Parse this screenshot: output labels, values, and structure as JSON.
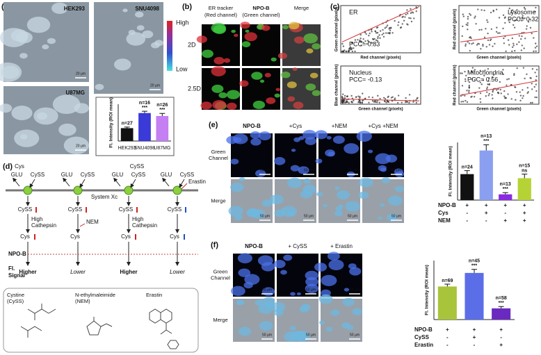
{
  "figure": {
    "a": {
      "label": "(a)",
      "images": [
        {
          "name": "HEK293",
          "scale": "20 μm"
        },
        {
          "name": "SNU4098",
          "scale": "20 μm"
        },
        {
          "name": "U87MG",
          "scale": "20 μm"
        }
      ],
      "colorbar": {
        "high": "High",
        "low": "Low"
      }
    },
    "b": {
      "label": "(b)",
      "columns": [
        [
          "ER tracker",
          "(Red channel)"
        ],
        [
          "NPO-B",
          "(Green channel)"
        ],
        [
          "Merge"
        ]
      ],
      "rows": [
        "2D",
        "2.5D"
      ]
    },
    "c": {
      "label": "(c)",
      "plots": [
        {
          "name": "ER",
          "pcc": "PCC= 0.83",
          "xlabel": "Red channel (pixels)",
          "ylabel": "Green channel (pixels)"
        },
        {
          "name": "Lysosome",
          "pcc": "PCC= 0.32",
          "xlabel": "Green channel (pixels)",
          "ylabel": "Red channel (pixels)"
        },
        {
          "name": "Nucleus",
          "pcc": "PCC= -0.13",
          "xlabel": "Green channel (pixels)",
          "ylabel": "Blue channel (pixels)"
        },
        {
          "name": "Mitochondria",
          "pcc": "PCC= 0.56",
          "xlabel": "Green channel (pixels)",
          "ylabel": "Red channel (pixels)"
        }
      ]
    },
    "d": {
      "label": "(d)",
      "columns": [
        {
          "top": "Cys",
          "in": "GLU",
          "out": "CySS",
          "inside": "CySS",
          "step": [
            "High",
            "Cathepsin"
          ],
          "product": "Cys",
          "signal": "Higher"
        },
        {
          "in": "GLU",
          "out": "CySS",
          "inside": "CySS",
          "inhibitor": "NEM",
          "product": "Cys",
          "signal": "Lower"
        },
        {
          "top": "CySS",
          "in": "GLU",
          "out": "CySS",
          "inside": "CySS",
          "step": [
            "High",
            "Cathepsin"
          ],
          "product": "Cys",
          "signal": "Higher"
        },
        {
          "inhibitor": "Erastin",
          "in": "GLU",
          "out": "CySS",
          "inside": "CySS",
          "product": "Cys",
          "signal": "Lower"
        }
      ],
      "system": "System Xc",
      "probe": "NPO-B",
      "readout": [
        "Fl.",
        "Signal"
      ],
      "compounds": [
        [
          "Cystine",
          "(CySS)"
        ],
        [
          "N-ethylmaleimide",
          "(NEM)"
        ],
        [
          "Erastin"
        ]
      ]
    },
    "e": {
      "label": "(e)",
      "columns": [
        "NPO-B",
        "+Cys",
        "+NEM",
        "+Cys  +NEM"
      ],
      "rows": [
        [
          "Green",
          "Channel"
        ],
        [
          "Merge"
        ]
      ],
      "scale": "50 μm"
    },
    "f": {
      "label": "(f)",
      "columns": [
        "NPO-B",
        "+ CySS",
        "+ Erastin"
      ],
      "rows": [
        [
          "Green",
          "Channel"
        ],
        [
          "Merge"
        ]
      ],
      "scale": "50 μm"
    }
  },
  "chart_data": [
    {
      "type": "bar",
      "ylabel": "Fl. Intensity (ROI mean)",
      "categories": [
        "HEK293",
        "SNU4098",
        "U87MG"
      ],
      "values": [
        0.35,
        0.76,
        0.68
      ],
      "errors": [
        0.03,
        0.05,
        0.07
      ],
      "colors": [
        "#111111",
        "#3a3ad8",
        "#c47ff2"
      ],
      "ylim": [
        0,
        1
      ],
      "annotations": [
        "n=27",
        "n=16",
        "n=26"
      ],
      "significance": [
        null,
        "***",
        "***"
      ]
    },
    {
      "type": "bar",
      "ylabel": "Fl. Intensity (ROI mean)",
      "values": [
        0.45,
        0.86,
        0.1,
        0.38
      ],
      "errors": [
        0.06,
        0.1,
        0.03,
        0.07
      ],
      "colors": [
        "#111111",
        "#8b9ff0",
        "#8a2be2",
        "#b6d336"
      ],
      "ylim": [
        0,
        1
      ],
      "annotations": [
        "n=24",
        "n=13",
        "n=13",
        "n=15"
      ],
      "significance": [
        null,
        "***",
        "***",
        "ns"
      ],
      "treatments": [
        {
          "name": "NPO-B",
          "marks": [
            "+",
            "+",
            "+",
            "+"
          ]
        },
        {
          "name": "Cys",
          "marks": [
            "-",
            "+",
            "-",
            "+"
          ]
        },
        {
          "name": "NEM",
          "marks": [
            "-",
            "-",
            "+",
            "+"
          ]
        }
      ]
    },
    {
      "type": "bar",
      "ylabel": "Fl. Intensity (ROI mean)",
      "values": [
        0.56,
        0.79,
        0.19
      ],
      "errors": [
        0.04,
        0.06,
        0.03
      ],
      "colors": [
        "#a8c43a",
        "#5b6ee8",
        "#6a2ac0"
      ],
      "ylim": [
        0,
        1
      ],
      "annotations": [
        "n=69",
        "n=45",
        "n=58"
      ],
      "significance": [
        null,
        "***",
        "***"
      ],
      "treatments": [
        {
          "name": "NPO-B",
          "marks": [
            "+",
            "+",
            "+"
          ]
        },
        {
          "name": "CySS",
          "marks": [
            "-",
            "+",
            "-"
          ]
        },
        {
          "name": "Erastin",
          "marks": [
            "-",
            "-",
            "+"
          ]
        }
      ]
    }
  ]
}
